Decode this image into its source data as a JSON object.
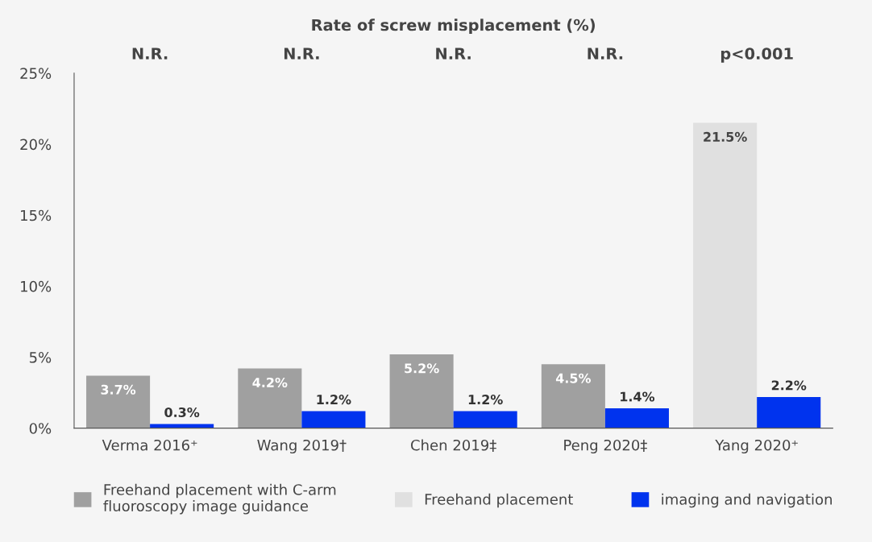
{
  "chart_data": {
    "type": "bar",
    "title": "Rate of screw misplacement (%)",
    "categories": [
      "Verma 2016⁺",
      "Wang 2019†",
      "Chen 2019‡",
      "Peng 2020‡",
      "Yang 2020⁺"
    ],
    "series": [
      {
        "name": "Freehand placement with C-arm\nfluoroscopy image guidance",
        "color": "#a0a0a0",
        "values": [
          3.7,
          4.2,
          5.2,
          4.5,
          null
        ],
        "value_labels": [
          "3.7%",
          "4.2%",
          "5.2%",
          "4.5%",
          null
        ]
      },
      {
        "name": "Freehand placement",
        "color": "#e0e0e0",
        "values": [
          null,
          null,
          null,
          null,
          21.5
        ],
        "value_labels": [
          null,
          null,
          null,
          null,
          "21.5%"
        ]
      },
      {
        "name": "imaging and navigation",
        "color": "#0033ee",
        "values": [
          0.3,
          1.2,
          1.2,
          1.4,
          2.2
        ],
        "value_labels": [
          "0.3%",
          "1.2%",
          "1.2%",
          "1.4%",
          "2.2%"
        ]
      }
    ],
    "ylim": [
      0,
      25
    ],
    "yticks": [
      {
        "value": 0,
        "label": "0%"
      },
      {
        "value": 5,
        "label": "5%"
      },
      {
        "value": 10,
        "label": "10%"
      },
      {
        "value": 15,
        "label": "15%"
      },
      {
        "value": 20,
        "label": "20%"
      },
      {
        "value": 25,
        "label": "25%"
      }
    ],
    "annotations": [
      "N.R.",
      "N.R.",
      "N.R.",
      "N.R.",
      "p<0.001"
    ],
    "grid": false,
    "legend": "bottom"
  }
}
